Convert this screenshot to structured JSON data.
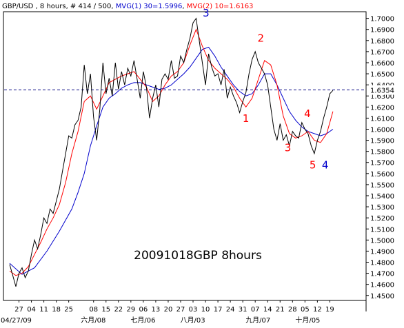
{
  "header": {
    "symbol": "GBP/USD , 8 hours, # 414 / 500, ",
    "mvg1": "MVG(1) 30=1.5996",
    "mvg1_sep": ", ",
    "mvg2": "MVG(2) 10=1.6163"
  },
  "colors": {
    "price": "#000000",
    "mvg1": "#0000cc",
    "mvg2": "#ff0000",
    "last_price_box": "#ffffff",
    "dashed": "#000080"
  },
  "chart_data": {
    "type": "line",
    "title": "20091018GBP 8hours",
    "ylim": [
      1.4455,
      1.706
    ],
    "x_range": [
      0,
      114
    ],
    "last_price": 1.6354,
    "y_ticks": [
      "1.7000",
      "1.6900",
      "1.6800",
      "1.6700",
      "1.6600",
      "1.6500",
      "1.6400",
      "1.6300",
      "1.6200",
      "1.6100",
      "1.6000",
      "1.5900",
      "1.5800",
      "1.5700",
      "1.5600",
      "1.5500",
      "1.5400",
      "1.5300",
      "1.5200",
      "1.5100",
      "1.5000",
      "1.4900",
      "1.4800",
      "1.4700",
      "1.4600",
      "1.4500"
    ],
    "x_ticks": [
      {
        "x": 3,
        "label": "27"
      },
      {
        "x": 7,
        "label": "04"
      },
      {
        "x": 11,
        "label": "11"
      },
      {
        "x": 15,
        "label": "18"
      },
      {
        "x": 19,
        "label": "25"
      },
      {
        "x": 27,
        "label": "08"
      },
      {
        "x": 31,
        "label": "15"
      },
      {
        "x": 35,
        "label": "22"
      },
      {
        "x": 39,
        "label": "29"
      },
      {
        "x": 43,
        "label": "06"
      },
      {
        "x": 47,
        "label": "13"
      },
      {
        "x": 51,
        "label": "20"
      },
      {
        "x": 55,
        "label": "27"
      },
      {
        "x": 59,
        "label": "03"
      },
      {
        "x": 63,
        "label": "10"
      },
      {
        "x": 67,
        "label": "17"
      },
      {
        "x": 71,
        "label": "24"
      },
      {
        "x": 75,
        "label": "31"
      },
      {
        "x": 79,
        "label": "07"
      },
      {
        "x": 83,
        "label": "14"
      },
      {
        "x": 87,
        "label": "21"
      },
      {
        "x": 91,
        "label": "28"
      },
      {
        "x": 95,
        "label": "05"
      },
      {
        "x": 99,
        "label": "12"
      },
      {
        "x": 103,
        "label": "19"
      }
    ],
    "month_ticks": [
      {
        "x": 0,
        "label": "04/27/09"
      },
      {
        "x": 26,
        "label": "六月/08"
      },
      {
        "x": 42,
        "label": "七月/06"
      },
      {
        "x": 58,
        "label": "八月/03"
      },
      {
        "x": 79,
        "label": "九月/07"
      },
      {
        "x": 95,
        "label": "十月/05"
      }
    ],
    "series": [
      {
        "name": "GBP/USD",
        "role": "price",
        "x": [
          0,
          1,
          2,
          3,
          4,
          5,
          6,
          7,
          8,
          9,
          10,
          11,
          12,
          13,
          14,
          15,
          16,
          17,
          18,
          19,
          20,
          21,
          22,
          23,
          24,
          25,
          26,
          27,
          28,
          29,
          30,
          31,
          32,
          33,
          34,
          35,
          36,
          37,
          38,
          39,
          40,
          41,
          42,
          43,
          44,
          45,
          46,
          47,
          48,
          49,
          50,
          51,
          52,
          53,
          54,
          55,
          56,
          57,
          58,
          59,
          60,
          61,
          62,
          63,
          64,
          65,
          66,
          67,
          68,
          69,
          70,
          71,
          72,
          73,
          74,
          75,
          76,
          77,
          78,
          79,
          80,
          81,
          82,
          83,
          84,
          85,
          86,
          87,
          88,
          89,
          90,
          91,
          92,
          93,
          94,
          95,
          96,
          97,
          98,
          99,
          100,
          101,
          102,
          103,
          104
        ],
        "values": [
          1.478,
          1.468,
          1.458,
          1.47,
          1.475,
          1.466,
          1.472,
          1.487,
          1.5,
          1.492,
          1.505,
          1.52,
          1.515,
          1.528,
          1.524,
          1.535,
          1.546,
          1.562,
          1.578,
          1.594,
          1.592,
          1.604,
          1.608,
          1.62,
          1.658,
          1.632,
          1.65,
          1.611,
          1.59,
          1.618,
          1.66,
          1.632,
          1.646,
          1.63,
          1.66,
          1.636,
          1.652,
          1.64,
          1.655,
          1.648,
          1.662,
          1.645,
          1.628,
          1.652,
          1.638,
          1.61,
          1.628,
          1.64,
          1.62,
          1.645,
          1.65,
          1.645,
          1.662,
          1.646,
          1.648,
          1.666,
          1.66,
          1.672,
          1.682,
          1.696,
          1.7,
          1.68,
          1.66,
          1.64,
          1.668,
          1.656,
          1.648,
          1.65,
          1.64,
          1.654,
          1.628,
          1.638,
          1.63,
          1.624,
          1.615,
          1.625,
          1.633,
          1.65,
          1.663,
          1.67,
          1.66,
          1.655,
          1.65,
          1.64,
          1.62,
          1.6,
          1.59,
          1.605,
          1.59,
          1.595,
          1.585,
          1.598,
          1.594,
          1.592,
          1.606,
          1.6,
          1.596,
          1.585,
          1.578,
          1.59,
          1.598,
          1.61,
          1.62,
          1.632,
          1.635
        ]
      },
      {
        "name": "MVG(1) 30",
        "role": "mvg1",
        "x": [
          0,
          4,
          8,
          12,
          16,
          20,
          22,
          24,
          26,
          28,
          30,
          32,
          34,
          36,
          38,
          40,
          42,
          44,
          46,
          48,
          50,
          52,
          54,
          56,
          58,
          60,
          62,
          64,
          66,
          68,
          70,
          72,
          74,
          76,
          78,
          80,
          82,
          84,
          86,
          88,
          90,
          92,
          94,
          96,
          98,
          100,
          102,
          104
        ],
        "values": [
          1.479,
          1.469,
          1.475,
          1.49,
          1.508,
          1.528,
          1.543,
          1.56,
          1.585,
          1.603,
          1.62,
          1.628,
          1.632,
          1.637,
          1.64,
          1.642,
          1.642,
          1.64,
          1.638,
          1.636,
          1.637,
          1.64,
          1.645,
          1.65,
          1.656,
          1.664,
          1.672,
          1.674,
          1.666,
          1.656,
          1.648,
          1.64,
          1.634,
          1.63,
          1.632,
          1.64,
          1.65,
          1.65,
          1.64,
          1.628,
          1.616,
          1.608,
          1.602,
          1.598,
          1.596,
          1.594,
          1.596,
          1.6
        ]
      },
      {
        "name": "MVG(2) 10",
        "role": "mvg2",
        "x": [
          0,
          2,
          4,
          6,
          8,
          10,
          12,
          14,
          16,
          18,
          20,
          22,
          24,
          26,
          28,
          30,
          32,
          34,
          36,
          38,
          40,
          42,
          44,
          46,
          48,
          50,
          52,
          54,
          56,
          58,
          60,
          62,
          64,
          66,
          68,
          70,
          72,
          74,
          76,
          78,
          80,
          82,
          84,
          86,
          88,
          90,
          92,
          94,
          96,
          98,
          100,
          102,
          104
        ],
        "values": [
          1.472,
          1.468,
          1.47,
          1.476,
          1.487,
          1.498,
          1.51,
          1.52,
          1.532,
          1.552,
          1.578,
          1.598,
          1.625,
          1.63,
          1.618,
          1.63,
          1.642,
          1.645,
          1.648,
          1.65,
          1.652,
          1.645,
          1.638,
          1.625,
          1.63,
          1.64,
          1.648,
          1.652,
          1.66,
          1.676,
          1.69,
          1.675,
          1.662,
          1.655,
          1.65,
          1.645,
          1.638,
          1.628,
          1.62,
          1.628,
          1.645,
          1.662,
          1.658,
          1.64,
          1.612,
          1.596,
          1.592,
          1.594,
          1.598,
          1.59,
          1.588,
          1.596,
          1.616
        ]
      }
    ],
    "annotations": [
      {
        "label": "3",
        "x": 63.2,
        "y": 1.7015,
        "color": "#0000cc"
      },
      {
        "label": "2",
        "x": 80.8,
        "y": 1.679,
        "color": "#ff0000"
      },
      {
        "label": "1",
        "x": 76.0,
        "y": 1.6065,
        "color": "#ff0000"
      },
      {
        "label": "4",
        "x": 95.8,
        "y": 1.611,
        "color": "#ff0000"
      },
      {
        "label": "3",
        "x": 89.5,
        "y": 1.58,
        "color": "#ff0000"
      },
      {
        "label": "5",
        "x": 97.5,
        "y": 1.5645,
        "color": "#ff0000"
      },
      {
        "label": "4",
        "x": 101.5,
        "y": 1.5645,
        "color": "#0000cc"
      }
    ]
  }
}
